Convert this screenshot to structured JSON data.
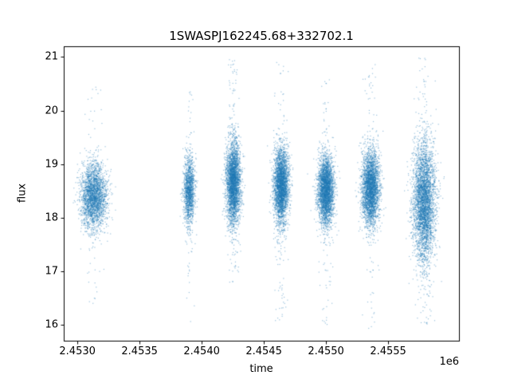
{
  "figure": {
    "background": "#ffffff"
  },
  "chart_data": {
    "type": "scatter",
    "title": "1SWASPJ162245.68+332702.1",
    "xlabel": "time",
    "ylabel": "flux",
    "x_offset_label": "1e6",
    "xlim": [
      2452890,
      2456070
    ],
    "ylim": [
      15.7,
      21.2
    ],
    "x_ticks": [
      2453000,
      2453500,
      2454000,
      2454500,
      2455000,
      2455500
    ],
    "x_tick_labels": [
      "2.4530",
      "2.4535",
      "2.4540",
      "2.4545",
      "2.4550",
      "2.4555"
    ],
    "y_ticks": [
      16,
      17,
      18,
      19,
      20,
      21
    ],
    "y_tick_labels": [
      "16",
      "17",
      "18",
      "19",
      "20",
      "21"
    ],
    "grid": false,
    "legend": "none",
    "marker_color": "#1f77b4",
    "marker_alpha": 0.45,
    "marker_size": 1.2,
    "seed": 42,
    "clusters": [
      {
        "name": "season-1",
        "x_center": 2453130,
        "x_sigma": 52,
        "y_center": 18.4,
        "y_sigma": 0.3,
        "n_core": 2600,
        "tail_min": 16.35,
        "tail_max": 20.45,
        "n_tail": 70
      },
      {
        "name": "season-2",
        "x_center": 2453900,
        "x_sigma": 22,
        "y_center": 18.5,
        "y_sigma": 0.32,
        "n_core": 1400,
        "tail_min": 15.95,
        "tail_max": 20.35,
        "n_tail": 60
      },
      {
        "name": "season-3",
        "x_center": 2454255,
        "x_sigma": 29,
        "y_center": 18.65,
        "y_sigma": 0.38,
        "n_core": 3200,
        "tail_min": 16.75,
        "tail_max": 21.0,
        "n_tail": 150
      },
      {
        "name": "season-4",
        "x_center": 2454640,
        "x_sigma": 29,
        "y_center": 18.6,
        "y_sigma": 0.35,
        "n_core": 3200,
        "tail_min": 16.05,
        "tail_max": 20.9,
        "n_tail": 110
      },
      {
        "name": "season-5",
        "x_center": 2455000,
        "x_sigma": 32,
        "y_center": 18.5,
        "y_sigma": 0.32,
        "n_core": 3200,
        "tail_min": 16.0,
        "tail_max": 20.6,
        "n_tail": 90
      },
      {
        "name": "season-6",
        "x_center": 2455360,
        "x_sigma": 35,
        "y_center": 18.55,
        "y_sigma": 0.34,
        "n_core": 3200,
        "tail_min": 15.9,
        "tail_max": 20.9,
        "n_tail": 110
      },
      {
        "name": "season-7",
        "x_center": 2455790,
        "x_sigma": 45,
        "y_center": 18.3,
        "y_sigma": 0.55,
        "n_core": 3800,
        "tail_min": 16.0,
        "tail_max": 21.0,
        "n_tail": 150
      }
    ]
  }
}
